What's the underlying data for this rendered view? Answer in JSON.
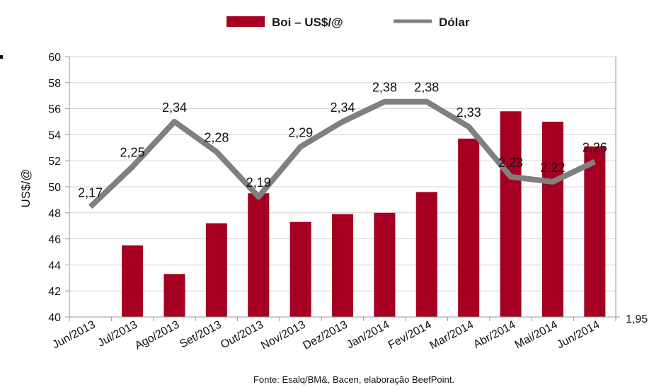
{
  "chart_data": {
    "type": "bar",
    "categories": [
      "Jun/2013",
      "Jul/2013",
      "Ago/2013",
      "Set/2013",
      "Out/2013",
      "Nov/2013",
      "Dez/2013",
      "Jan/2014",
      "Fev/2014",
      "Mar/2014",
      "Abr/2014",
      "Mai/2014",
      "Jun/2014"
    ],
    "series": [
      {
        "name": "Boi – US$/@",
        "type": "bar",
        "color": "#a50021",
        "values": [
          null,
          45.5,
          43.3,
          47.2,
          49.5,
          47.3,
          47.9,
          48.0,
          49.6,
          53.7,
          55.8,
          55.0,
          53.1
        ]
      },
      {
        "name": "Dólar",
        "type": "line",
        "color": "#808080",
        "axis": "right",
        "values": [
          2.17,
          2.25,
          2.34,
          2.28,
          2.19,
          2.29,
          2.34,
          2.38,
          2.38,
          2.33,
          2.23,
          2.22,
          2.26
        ],
        "labels": [
          "2,17",
          "2,25",
          "2,34",
          "2,28",
          "2,19",
          "2,29",
          "2,34",
          "2,38",
          "2,38",
          "2,33",
          "2,23",
          "2,22",
          "2,26"
        ]
      }
    ],
    "ylabel": "US$/@",
    "ylim": [
      40,
      60
    ],
    "yticks": [
      "40",
      "42",
      "44",
      "46",
      "48",
      "50",
      "52",
      "54",
      "56",
      "58",
      "60"
    ],
    "y2_tick": "1,95",
    "grid": true,
    "legend_position": "top"
  },
  "legend": {
    "bar_label": "Boi – US$/@",
    "line_label": "Dólar"
  },
  "source_note": "Fonte:  Esalq/BM&,  Bacen,  elaboração  BeefPoint."
}
